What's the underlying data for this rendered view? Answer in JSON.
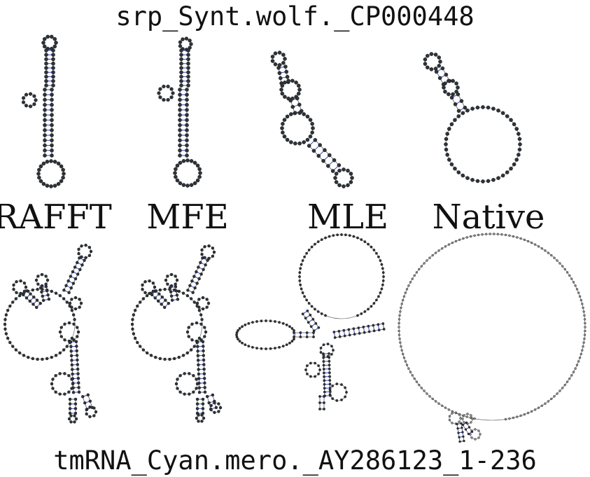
{
  "titles": {
    "top": "srp_Synt.wolf._CP000448",
    "bottom": "tmRNA_Cyan.mero._AY286123_1-236"
  },
  "methods": [
    "RAFFT",
    "MFE",
    "MLE",
    "Native"
  ],
  "colors": {
    "node": "#2d3338",
    "backbone": "#555555",
    "pair": "#3a44c8",
    "native_bottom_node": "#8a8a8a"
  }
}
